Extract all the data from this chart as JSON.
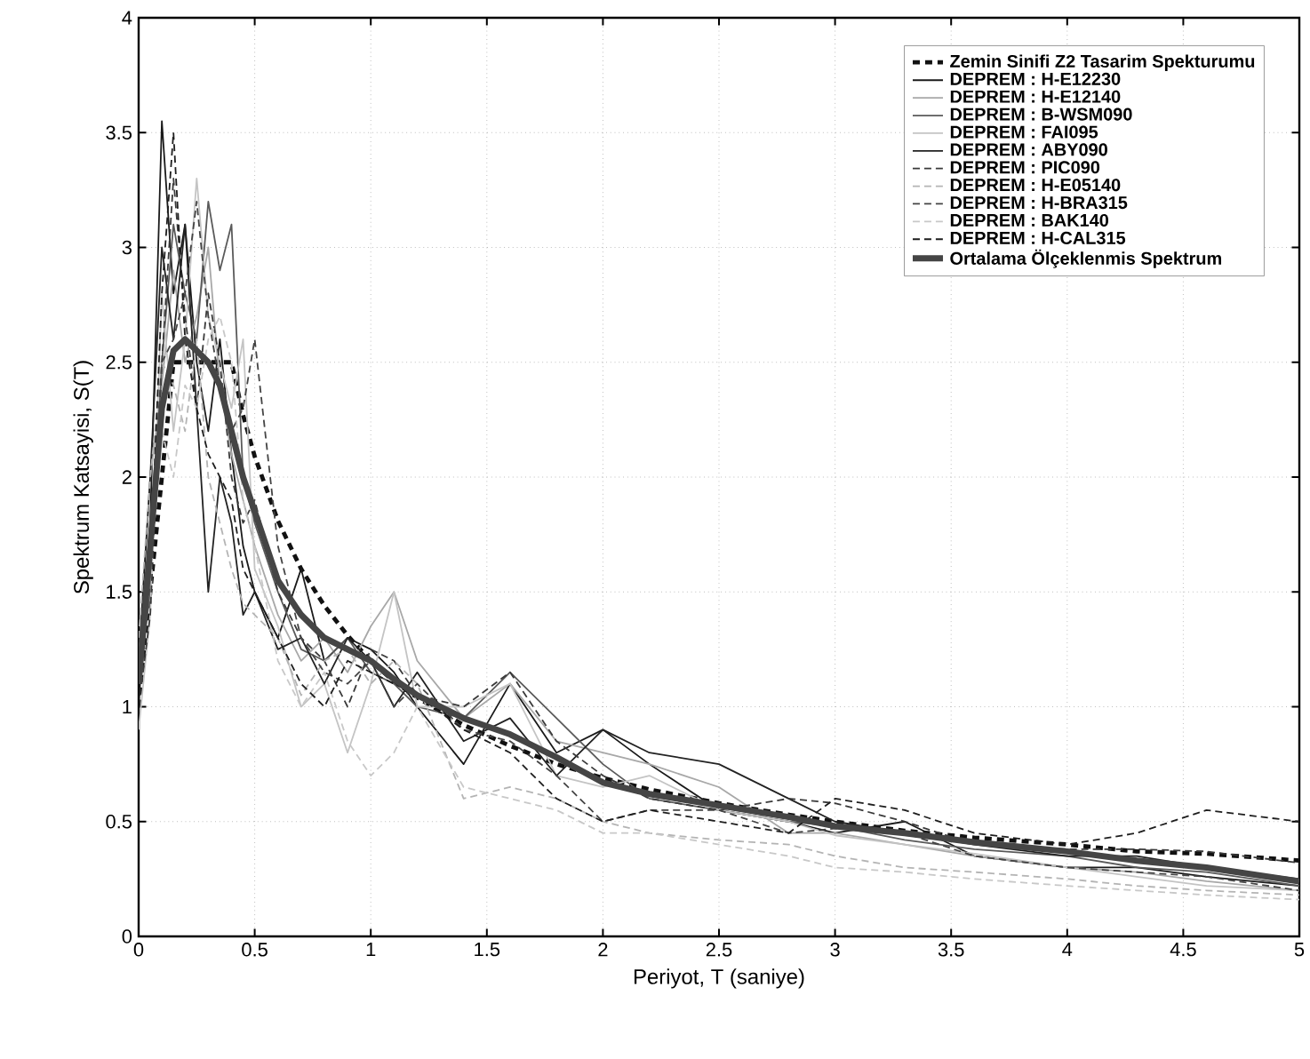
{
  "chart_data": {
    "type": "line",
    "xlabel": "Periyot, T (saniye)",
    "ylabel": "Spektrum Katsayisi, S(T)",
    "xlim": [
      0,
      5
    ],
    "ylim": [
      0,
      4
    ],
    "xticks": [
      0,
      0.5,
      1,
      1.5,
      2,
      2.5,
      3,
      3.5,
      4,
      4.5,
      5
    ],
    "yticks": [
      0,
      0.5,
      1,
      1.5,
      2,
      2.5,
      3,
      3.5,
      4
    ],
    "grid": true,
    "legend": "top right",
    "x": [
      0,
      0.05,
      0.1,
      0.15,
      0.2,
      0.25,
      0.3,
      0.35,
      0.4,
      0.45,
      0.5,
      0.6,
      0.7,
      0.8,
      0.9,
      1.0,
      1.1,
      1.2,
      1.4,
      1.6,
      1.8,
      2.0,
      2.2,
      2.5,
      2.8,
      3.0,
      3.3,
      3.6,
      4.0,
      4.3,
      4.6,
      5.0
    ],
    "series": [
      {
        "name": "Zemin Sinifi Z2 Tasarim Spekturumu",
        "color": "#111111",
        "line_style": "dashed",
        "values": [
          1.0,
          1.5,
          2.0,
          2.5,
          2.5,
          2.5,
          2.5,
          2.5,
          2.5,
          2.27,
          2.09,
          1.81,
          1.6,
          1.44,
          1.31,
          1.2,
          1.11,
          1.04,
          0.92,
          0.83,
          0.75,
          0.69,
          0.64,
          0.58,
          0.53,
          0.5,
          0.46,
          0.43,
          0.4,
          0.37,
          0.36,
          0.33
        ]
      },
      {
        "name": "DEPREM : H-E12230",
        "color": "#1a1a1a",
        "line_style": "solid",
        "values": [
          1.0,
          1.8,
          3.55,
          2.8,
          3.1,
          2.5,
          2.2,
          2.6,
          2.1,
          1.7,
          1.5,
          1.3,
          1.6,
          1.2,
          1.3,
          1.25,
          1.15,
          1.0,
          0.75,
          1.1,
          0.8,
          0.9,
          0.75,
          0.55,
          0.5,
          0.45,
          0.5,
          0.35,
          0.3,
          0.3,
          0.26,
          0.22
        ]
      },
      {
        "name": "DEPREM : H-E12140",
        "color": "#a8a8a8",
        "line_style": "solid",
        "values": [
          1.2,
          2.0,
          2.4,
          2.9,
          2.5,
          2.7,
          3.0,
          2.4,
          2.1,
          1.9,
          1.7,
          1.4,
          1.2,
          1.3,
          1.15,
          1.35,
          1.5,
          1.2,
          0.95,
          1.1,
          0.85,
          0.8,
          0.75,
          0.65,
          0.45,
          0.45,
          0.4,
          0.35,
          0.3,
          0.28,
          0.24,
          0.2
        ]
      },
      {
        "name": "DEPREM : B-WSM090",
        "color": "#5a5a5a",
        "line_style": "solid",
        "values": [
          1.1,
          1.5,
          2.5,
          3.1,
          2.8,
          2.6,
          3.2,
          2.9,
          3.1,
          2.0,
          1.8,
          1.5,
          1.25,
          1.2,
          1.3,
          1.15,
          1.1,
          1.0,
          0.95,
          1.15,
          0.95,
          0.75,
          0.6,
          0.55,
          0.5,
          0.48,
          0.42,
          0.38,
          0.35,
          0.3,
          0.28,
          0.22
        ]
      },
      {
        "name": "DEPREM : FAI095",
        "color": "#c4c4c4",
        "line_style": "solid",
        "values": [
          0.9,
          1.4,
          2.8,
          2.2,
          2.6,
          3.3,
          2.7,
          2.5,
          2.3,
          2.6,
          1.6,
          1.35,
          1.0,
          1.1,
          0.8,
          1.1,
          1.5,
          1.0,
          1.0,
          1.1,
          0.7,
          0.65,
          0.7,
          0.55,
          0.5,
          0.44,
          0.4,
          0.36,
          0.3,
          0.26,
          0.22,
          0.2
        ]
      },
      {
        "name": "DEPREM : ABY090",
        "color": "#222222",
        "line_style": "solid",
        "values": [
          1.2,
          2.0,
          3.0,
          2.6,
          3.1,
          2.3,
          1.5,
          2.0,
          1.8,
          1.4,
          1.5,
          1.25,
          1.3,
          1.1,
          1.3,
          1.2,
          1.0,
          1.15,
          0.85,
          0.95,
          0.7,
          0.9,
          0.8,
          0.75,
          0.6,
          0.5,
          0.45,
          0.4,
          0.35,
          0.35,
          0.3,
          0.25
        ]
      },
      {
        "name": "DEPREM : PIC090",
        "color": "#3a3a3a",
        "line_style": "dashed",
        "values": [
          1.0,
          1.4,
          2.5,
          3.3,
          2.7,
          2.3,
          2.8,
          2.5,
          2.0,
          1.8,
          1.9,
          1.5,
          1.3,
          1.2,
          1.0,
          1.25,
          1.2,
          1.05,
          1.0,
          1.15,
          0.85,
          0.7,
          0.6,
          0.55,
          0.6,
          0.58,
          0.5,
          0.4,
          0.38,
          0.38,
          0.37,
          0.32
        ]
      },
      {
        "name": "DEPREM : H-E05140",
        "color": "#b4b4b4",
        "line_style": "dashed",
        "values": [
          1.3,
          2.0,
          2.5,
          2.4,
          2.2,
          2.6,
          2.0,
          1.8,
          1.6,
          1.45,
          1.4,
          1.3,
          1.05,
          1.2,
          1.25,
          1.1,
          1.2,
          1.1,
          0.6,
          0.65,
          0.6,
          0.5,
          0.45,
          0.42,
          0.4,
          0.35,
          0.3,
          0.28,
          0.25,
          0.22,
          0.2,
          0.18
        ]
      },
      {
        "name": "DEPREM : H-BRA315",
        "color": "#444444",
        "line_style": "dashed",
        "values": [
          1.1,
          1.7,
          2.5,
          2.6,
          2.8,
          3.2,
          2.7,
          2.4,
          2.2,
          2.3,
          2.6,
          1.7,
          1.3,
          1.15,
          1.1,
          1.2,
          1.0,
          1.1,
          0.9,
          0.85,
          0.7,
          0.5,
          0.55,
          0.55,
          0.45,
          0.47,
          0.45,
          0.35,
          0.3,
          0.28,
          0.26,
          0.2
        ]
      },
      {
        "name": "DEPREM : BAK140",
        "color": "#c8c8c8",
        "line_style": "dashed",
        "values": [
          1.2,
          1.8,
          2.2,
          2.0,
          2.4,
          2.3,
          2.6,
          2.7,
          2.5,
          1.9,
          1.7,
          1.2,
          1.0,
          1.15,
          0.85,
          0.7,
          0.8,
          1.0,
          0.65,
          0.6,
          0.55,
          0.45,
          0.45,
          0.4,
          0.35,
          0.3,
          0.28,
          0.25,
          0.22,
          0.2,
          0.18,
          0.16
        ]
      },
      {
        "name": "DEPREM : H-CAL315",
        "color": "#1e1e1e",
        "line_style": "dashed",
        "values": [
          1.0,
          1.6,
          2.8,
          3.5,
          2.6,
          2.3,
          2.1,
          2.0,
          1.9,
          1.6,
          1.5,
          1.3,
          1.1,
          1.0,
          1.2,
          1.15,
          1.1,
          1.05,
          0.9,
          0.8,
          0.6,
          0.5,
          0.55,
          0.5,
          0.45,
          0.6,
          0.55,
          0.45,
          0.4,
          0.45,
          0.55,
          0.5
        ]
      },
      {
        "name": "Ortalama Ölçeklenmis Spektrum",
        "color": "#454545",
        "line_style": "solid",
        "values": [
          1.1,
          1.7,
          2.3,
          2.55,
          2.6,
          2.55,
          2.5,
          2.4,
          2.2,
          2.0,
          1.85,
          1.55,
          1.4,
          1.3,
          1.25,
          1.2,
          1.12,
          1.05,
          0.95,
          0.88,
          0.78,
          0.67,
          0.62,
          0.57,
          0.52,
          0.48,
          0.45,
          0.41,
          0.37,
          0.33,
          0.3,
          0.24
        ]
      }
    ]
  }
}
